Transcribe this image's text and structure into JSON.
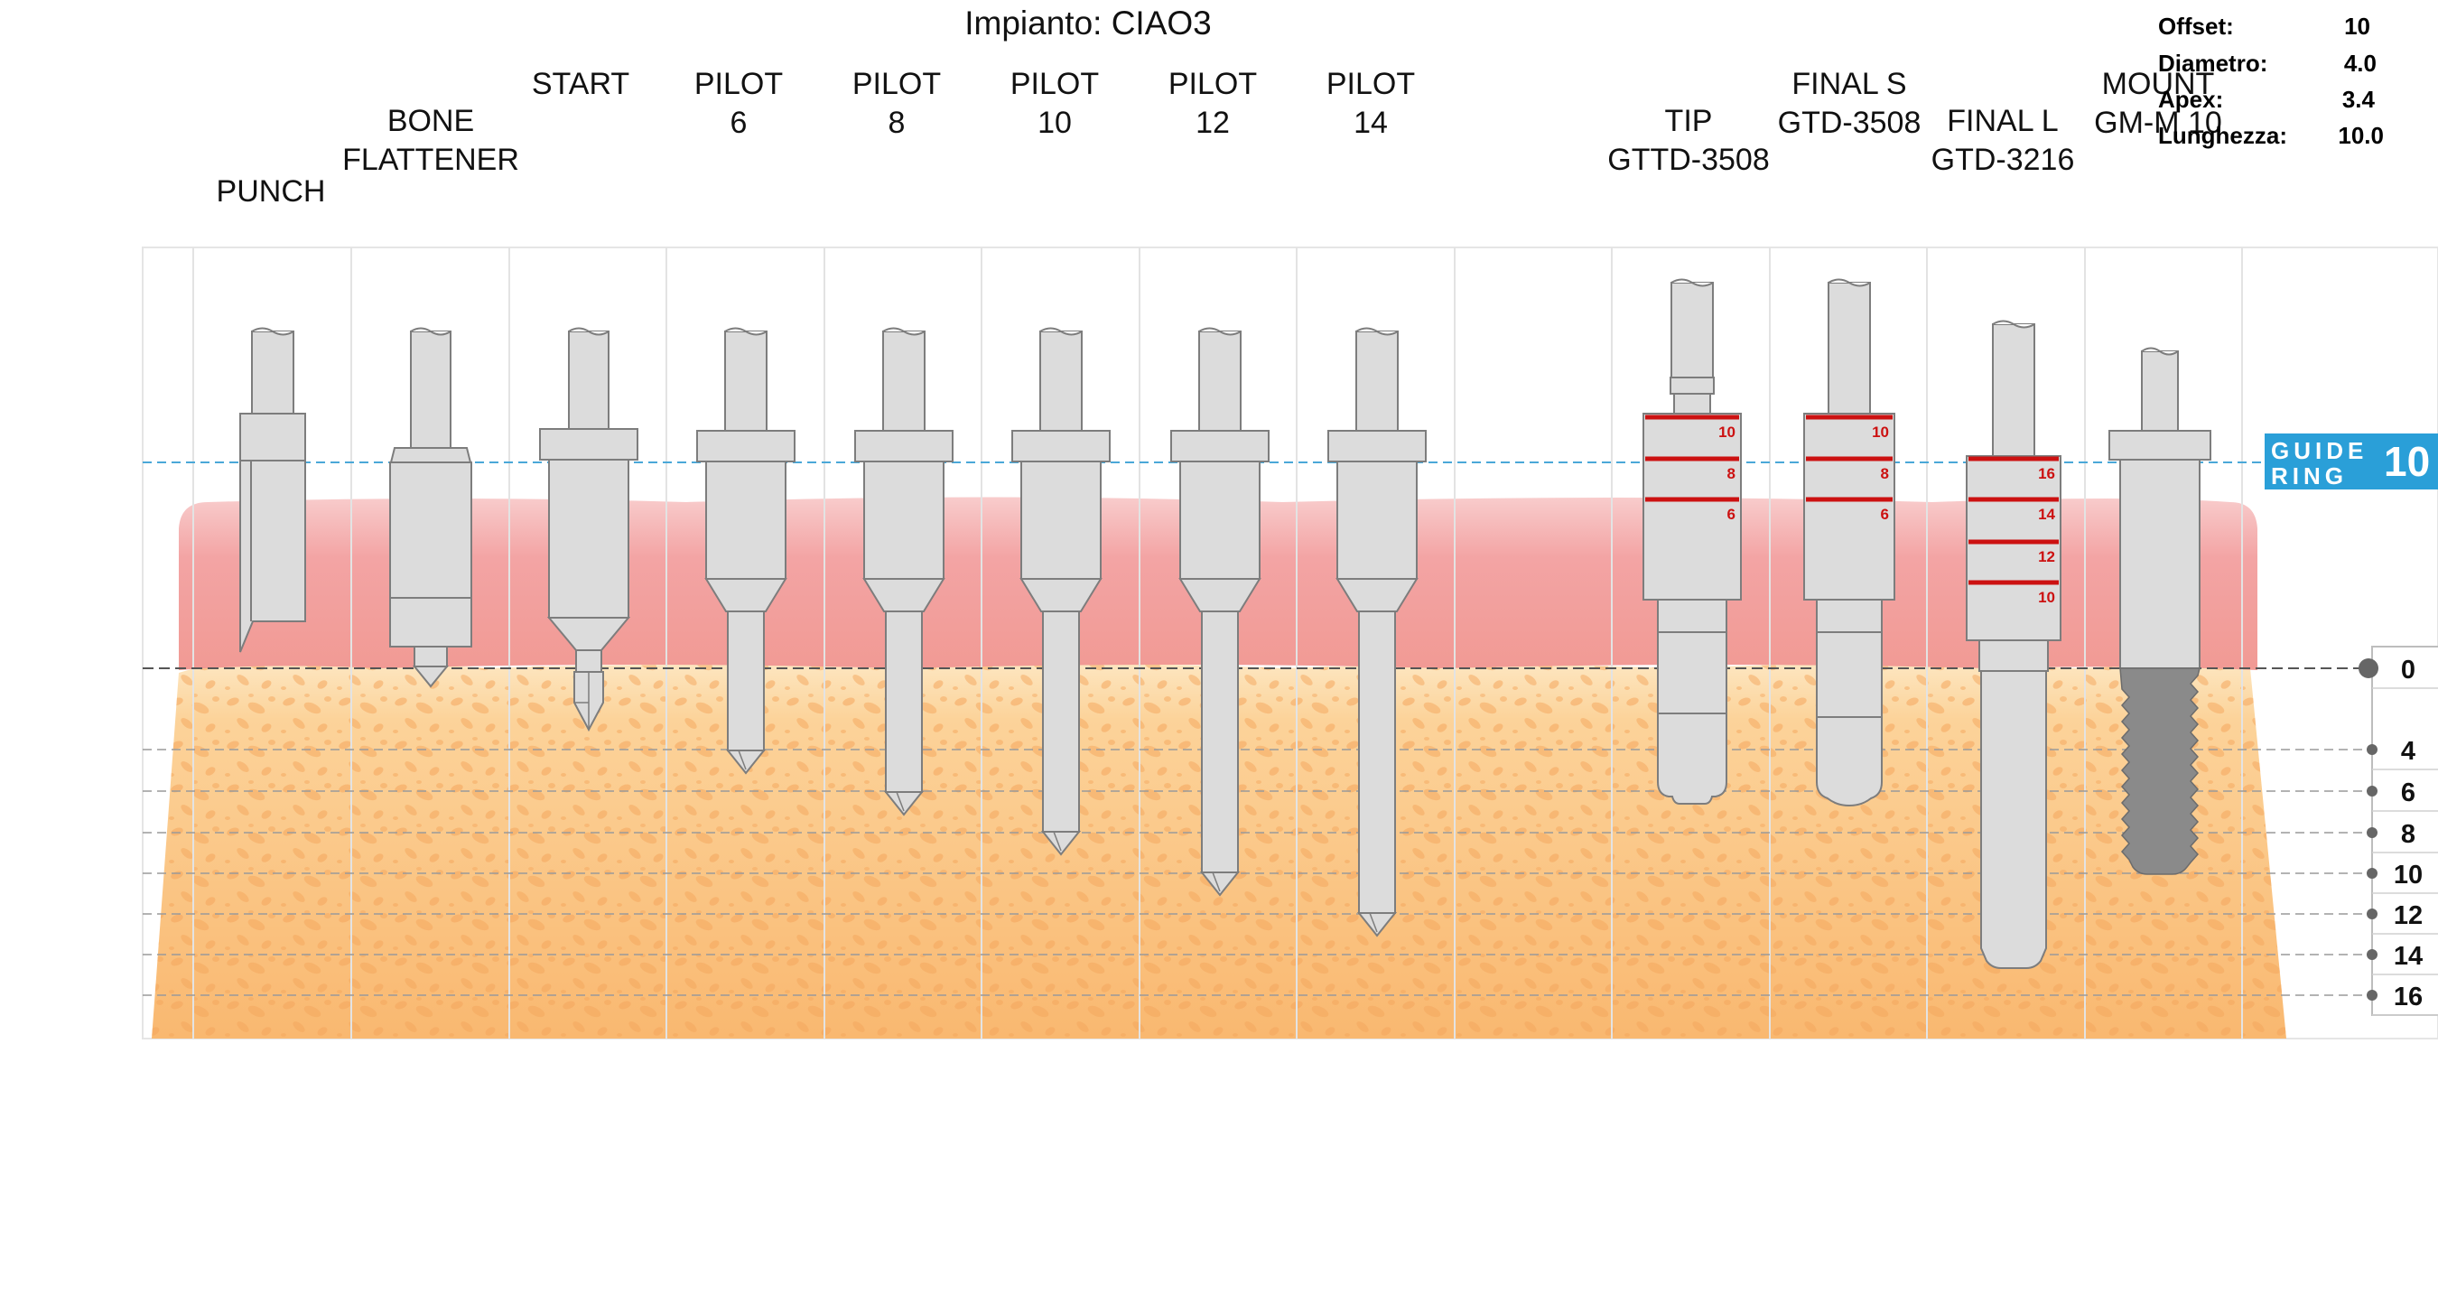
{
  "title": "Impianto: CIAO3",
  "info": [
    {
      "label": "Offset:",
      "value": "10"
    },
    {
      "label": "Diametro:",
      "value": "4.0"
    },
    {
      "label": "Apex:",
      "value": "3.4"
    },
    {
      "label": "Lunghezza:",
      "value": "10.0"
    }
  ],
  "tools": [
    {
      "lines": [
        "PUNCH"
      ]
    },
    {
      "lines": [
        "BONE",
        "FLATTENER"
      ]
    },
    {
      "lines": [
        "START"
      ]
    },
    {
      "lines": [
        "PILOT",
        "6"
      ]
    },
    {
      "lines": [
        "PILOT",
        "8"
      ]
    },
    {
      "lines": [
        "PILOT",
        "10"
      ]
    },
    {
      "lines": [
        "PILOT",
        "12"
      ]
    },
    {
      "lines": [
        "PILOT",
        "14"
      ]
    },
    {
      "lines": [
        "TIP",
        "GTTD-3508"
      ]
    },
    {
      "lines": [
        "FINAL  S",
        "GTD-3508"
      ]
    },
    {
      "lines": [
        "FINAL  L",
        "GTD-3216"
      ]
    },
    {
      "lines": [
        "MOUNT",
        "GM-M 10"
      ]
    }
  ],
  "guide_ring": {
    "line1": "GUIDE",
    "line2": "RING",
    "value": "10"
  },
  "depth_scale": [
    "0",
    "4",
    "6",
    "8",
    "10",
    "12",
    "14",
    "16"
  ],
  "drill_marks": {
    "tip": [
      "10",
      "8",
      "6"
    ],
    "final_s": [
      "10",
      "8",
      "6"
    ],
    "final_l": [
      "16",
      "14",
      "12",
      "10"
    ]
  },
  "colors": {
    "guide_ring": "#2a9fd8",
    "gum": "#f3a4a4",
    "bone": "#fcc682",
    "mark_red": "#cc1111",
    "tool_fill": "#dcdcdc",
    "implant": "#8a8a8a"
  }
}
